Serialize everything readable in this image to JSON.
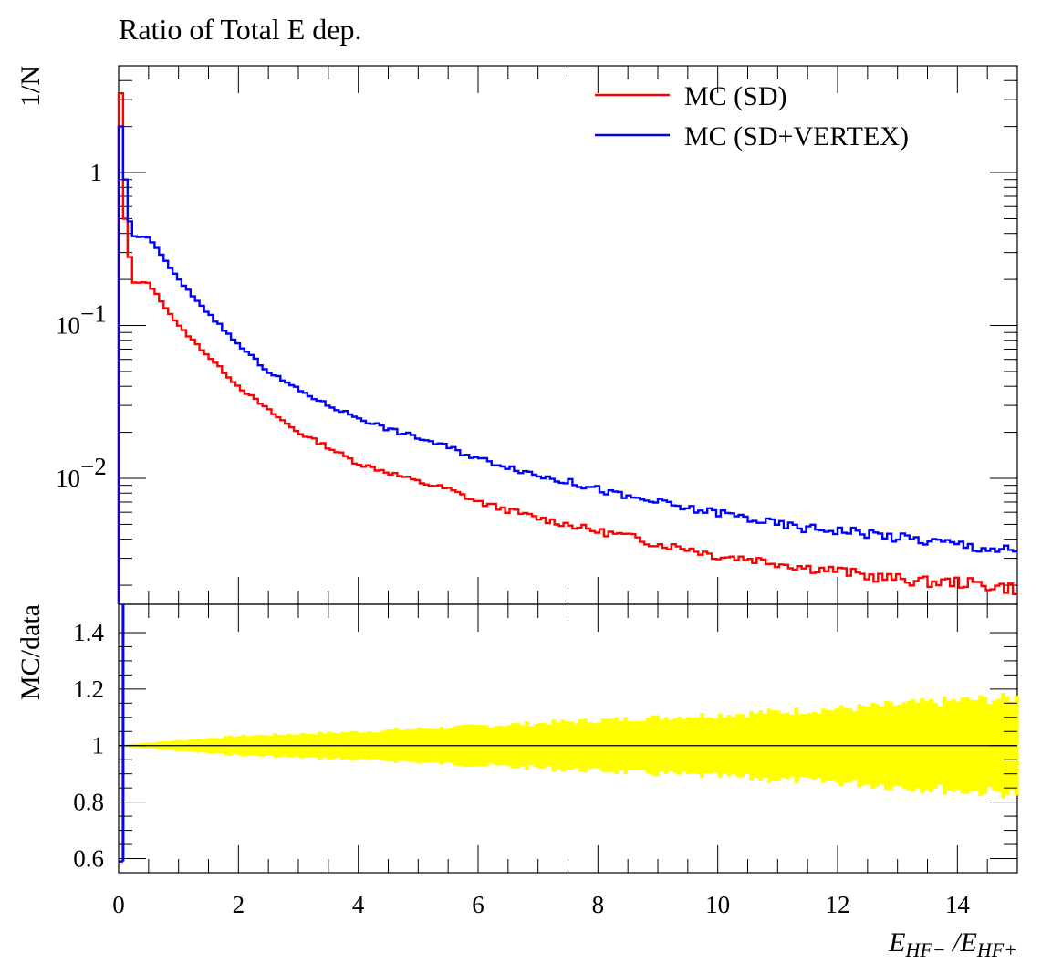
{
  "chart_data": [
    {
      "panel": "main",
      "type": "line",
      "step": true,
      "title": "Ratio of Total E dep.",
      "ylabel": "1/N",
      "xlim": [
        0,
        15
      ],
      "ylim": [
        0.0015,
        5
      ],
      "ylog": true,
      "yticks": [
        {
          "value": 1,
          "label": "1"
        },
        {
          "value": 0.1,
          "label": "10",
          "exp": "−1"
        },
        {
          "value": 0.01,
          "label": "10",
          "exp": "−2"
        }
      ],
      "legend": {
        "placement": "top-right"
      },
      "series": [
        {
          "name": "MC (SD)",
          "color": "#ff0000",
          "first_bins": [
            3.3,
            0.5,
            0.28
          ],
          "x": [
            0.5,
            1,
            1.5,
            2,
            2.5,
            3,
            3.5,
            4,
            4.5,
            5,
            5.5,
            6,
            6.5,
            7,
            7.5,
            8,
            8.5,
            9,
            9.5,
            10,
            10.5,
            11,
            11.5,
            12,
            12.5,
            13,
            13.5,
            14,
            14.5,
            15
          ],
          "y": [
            0.19,
            0.1,
            0.063,
            0.04,
            0.028,
            0.02,
            0.016,
            0.0125,
            0.011,
            0.0095,
            0.0085,
            0.007,
            0.0062,
            0.0055,
            0.005,
            0.0045,
            0.0042,
            0.0037,
            0.0035,
            0.0031,
            0.003,
            0.0028,
            0.0026,
            0.0025,
            0.0023,
            0.0022,
            0.0021,
            0.0021,
            0.002,
            0.0019
          ]
        },
        {
          "name": "MC (SD+VERTEX)",
          "color": "#0000ff",
          "first_bins": [
            2.0,
            0.9,
            0.48
          ],
          "x": [
            0.5,
            1,
            1.5,
            2,
            2.5,
            3,
            3.5,
            4,
            4.5,
            5,
            5.5,
            6,
            6.5,
            7,
            7.5,
            8,
            8.5,
            9,
            9.5,
            10,
            10.5,
            11,
            11.5,
            12,
            12.5,
            13,
            13.5,
            14,
            14.5,
            15
          ],
          "y": [
            0.38,
            0.2,
            0.12,
            0.075,
            0.05,
            0.038,
            0.03,
            0.025,
            0.021,
            0.0185,
            0.016,
            0.0135,
            0.012,
            0.0105,
            0.0095,
            0.0085,
            0.0075,
            0.007,
            0.0063,
            0.006,
            0.0055,
            0.005,
            0.0047,
            0.0046,
            0.0044,
            0.0041,
            0.0039,
            0.0037,
            0.0035,
            0.0033
          ]
        }
      ]
    },
    {
      "panel": "ratio",
      "type": "area",
      "ylabel": "MC/data",
      "xlabel_base": "E",
      "xlabel_sub_num": "HF−",
      "xlabel_sep": "/",
      "xlabel_sub_den": "HF+",
      "xlim": [
        0,
        15
      ],
      "ylim": [
        0.55,
        1.5
      ],
      "xticks": [
        0,
        2,
        4,
        6,
        8,
        10,
        12,
        14
      ],
      "yticks": [
        0.6,
        0.8,
        1,
        1.2,
        1.4
      ],
      "ytick_labels": [
        "0.6",
        "0.8",
        "1",
        "1.2",
        "1.4"
      ],
      "reference_line": 1,
      "band": {
        "color": "#ffff00",
        "x": [
          0.1,
          2,
          4,
          6,
          8,
          10,
          12,
          14,
          15
        ],
        "halfwidth": [
          0.005,
          0.035,
          0.05,
          0.07,
          0.09,
          0.11,
          0.13,
          0.16,
          0.17
        ]
      },
      "spike_bin": {
        "x": 0.075,
        "low": 0.59,
        "high": 1.5,
        "color": "#0000ff"
      }
    }
  ]
}
